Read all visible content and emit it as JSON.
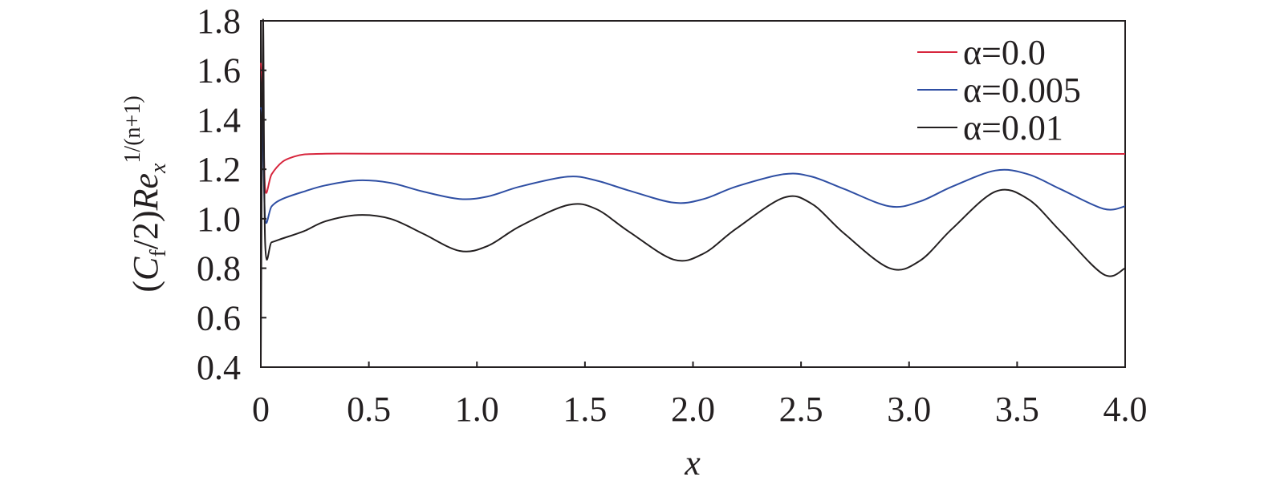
{
  "chart_data": {
    "type": "line",
    "xlabel": "x",
    "ylabel": {
      "open": "(",
      "c": "C",
      "c_sub": "f",
      "mid": "/2)",
      "re": "Re",
      "re_sub": "x",
      "re_sup": "1/(n+1)"
    },
    "xlim": [
      0,
      4.0
    ],
    "ylim": [
      0.4,
      1.8
    ],
    "x_ticks": [
      {
        "value": 0,
        "label": "0"
      },
      {
        "value": 0.5,
        "label": "0.5"
      },
      {
        "value": 1.0,
        "label": "1.0"
      },
      {
        "value": 1.5,
        "label": "1.5"
      },
      {
        "value": 2.0,
        "label": "2.0"
      },
      {
        "value": 2.5,
        "label": "2.5"
      },
      {
        "value": 3.0,
        "label": "3.0"
      },
      {
        "value": 3.5,
        "label": "3.5"
      },
      {
        "value": 4.0,
        "label": "4.0"
      }
    ],
    "y_ticks": [
      {
        "value": 0.4,
        "label": "0.4"
      },
      {
        "value": 0.6,
        "label": "0.6"
      },
      {
        "value": 0.8,
        "label": "0.8"
      },
      {
        "value": 1.0,
        "label": "1.0"
      },
      {
        "value": 1.2,
        "label": "1.2"
      },
      {
        "value": 1.4,
        "label": "1.4"
      },
      {
        "value": 1.6,
        "label": "1.6"
      },
      {
        "value": 1.8,
        "label": "1.8"
      }
    ],
    "grid": false,
    "legend_position": "top-right",
    "series": [
      {
        "name": "α=0.0",
        "color": "#d7263d",
        "points": [
          [
            0.0,
            1.63
          ],
          [
            0.01,
            1.5
          ],
          [
            0.02,
            1.12
          ],
          [
            0.05,
            1.18
          ],
          [
            0.1,
            1.23
          ],
          [
            0.15,
            1.25
          ],
          [
            0.2,
            1.26
          ],
          [
            0.3,
            1.263
          ],
          [
            0.5,
            1.263
          ],
          [
            1.0,
            1.262
          ],
          [
            2.0,
            1.262
          ],
          [
            3.0,
            1.262
          ],
          [
            4.0,
            1.262
          ]
        ]
      },
      {
        "name": "α=0.005",
        "color": "#2e4ea3",
        "points": [
          [
            0.0,
            1.45
          ],
          [
            0.01,
            1.38
          ],
          [
            0.02,
            1.0
          ],
          [
            0.05,
            1.05
          ],
          [
            0.1,
            1.08
          ],
          [
            0.2,
            1.11
          ],
          [
            0.3,
            1.135
          ],
          [
            0.45,
            1.155
          ],
          [
            0.6,
            1.145
          ],
          [
            0.75,
            1.11
          ],
          [
            0.92,
            1.08
          ],
          [
            1.05,
            1.09
          ],
          [
            1.2,
            1.13
          ],
          [
            1.42,
            1.17
          ],
          [
            1.55,
            1.155
          ],
          [
            1.7,
            1.115
          ],
          [
            1.91,
            1.065
          ],
          [
            2.05,
            1.08
          ],
          [
            2.2,
            1.13
          ],
          [
            2.42,
            1.18
          ],
          [
            2.55,
            1.17
          ],
          [
            2.7,
            1.12
          ],
          [
            2.91,
            1.05
          ],
          [
            3.05,
            1.07
          ],
          [
            3.2,
            1.13
          ],
          [
            3.4,
            1.195
          ],
          [
            3.55,
            1.18
          ],
          [
            3.7,
            1.12
          ],
          [
            3.9,
            1.04
          ],
          [
            4.0,
            1.05
          ]
        ]
      },
      {
        "name": "α=0.01",
        "color": "#231f20",
        "points": [
          [
            0.0,
            0.42
          ],
          [
            0.01,
            1.8
          ],
          [
            0.02,
            0.9
          ],
          [
            0.05,
            0.905
          ],
          [
            0.1,
            0.92
          ],
          [
            0.2,
            0.95
          ],
          [
            0.3,
            0.99
          ],
          [
            0.45,
            1.015
          ],
          [
            0.6,
            1.0
          ],
          [
            0.75,
            0.94
          ],
          [
            0.92,
            0.87
          ],
          [
            1.05,
            0.89
          ],
          [
            1.2,
            0.97
          ],
          [
            1.42,
            1.055
          ],
          [
            1.55,
            1.04
          ],
          [
            1.7,
            0.95
          ],
          [
            1.91,
            0.835
          ],
          [
            2.05,
            0.86
          ],
          [
            2.2,
            0.96
          ],
          [
            2.42,
            1.085
          ],
          [
            2.55,
            1.06
          ],
          [
            2.7,
            0.94
          ],
          [
            2.91,
            0.8
          ],
          [
            3.05,
            0.83
          ],
          [
            3.2,
            0.96
          ],
          [
            3.4,
            1.11
          ],
          [
            3.55,
            1.08
          ],
          [
            3.7,
            0.95
          ],
          [
            3.9,
            0.775
          ],
          [
            4.0,
            0.8
          ]
        ]
      }
    ]
  }
}
